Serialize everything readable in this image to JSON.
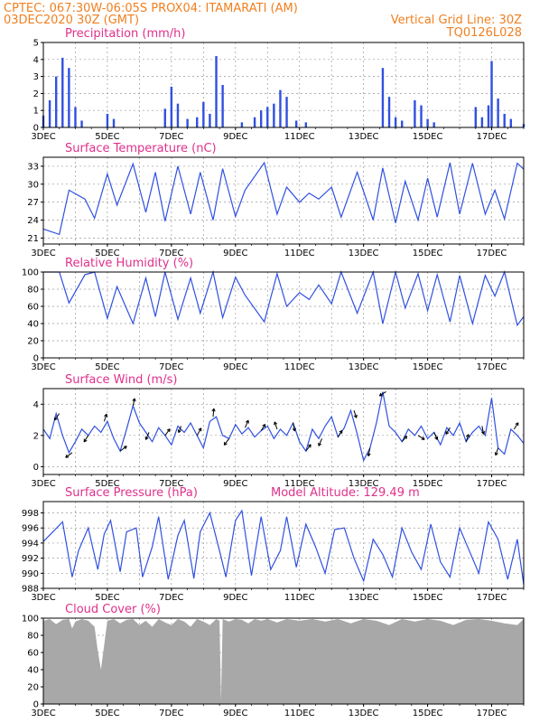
{
  "header": {
    "line1_left": "CPTEC:   067:30W-06:05S   PROX04: ITAMARATI (AM)",
    "line2_left": "03DEC2020 30Z (GMT)",
    "line2_right": "Vertical Grid Line: 30Z",
    "line3_right": "TQ0126L028"
  },
  "colors": {
    "header_text": "#f08020",
    "panel_title": "#e0308c",
    "series_line": "#3050e0",
    "precip_bar": "#3050e0",
    "cloud_fill": "#a8a8a8",
    "wind_arrow": "#000000"
  },
  "chart_data": [
    {
      "type": "bar",
      "panel": "precipitation",
      "title": "Precipitation (mm/h)",
      "ylim": [
        0,
        5
      ],
      "yticks": [
        "0",
        "1",
        "2",
        "3",
        "4",
        "5"
      ],
      "xticks": [
        "3DEC",
        "5DEC",
        "7DEC",
        "9DEC",
        "11DEC",
        "13DEC",
        "15DEC",
        "17DEC"
      ],
      "x_days": [
        3.0,
        3.2,
        3.4,
        3.6,
        3.8,
        4.0,
        4.2,
        5.0,
        5.2,
        6.8,
        7.0,
        7.2,
        7.5,
        7.8,
        8.0,
        8.2,
        8.4,
        8.6,
        9.2,
        9.6,
        9.8,
        10.0,
        10.2,
        10.4,
        10.6,
        10.9,
        11.2,
        13.6,
        13.8,
        14.0,
        14.2,
        14.6,
        14.8,
        15.0,
        15.2,
        16.5,
        16.7,
        16.9,
        17.0,
        17.2,
        17.4,
        17.6,
        18.0
      ],
      "values": [
        0.7,
        1.6,
        3.0,
        4.1,
        3.5,
        1.2,
        0.4,
        0.8,
        0.5,
        1.1,
        2.4,
        1.4,
        0.5,
        0.6,
        1.5,
        0.8,
        4.2,
        2.5,
        0.3,
        0.6,
        1.0,
        1.2,
        1.4,
        2.2,
        1.8,
        0.4,
        0.3,
        3.5,
        1.8,
        0.6,
        0.4,
        1.6,
        1.3,
        0.5,
        0.3,
        1.2,
        0.6,
        1.3,
        3.9,
        1.7,
        0.8,
        0.5,
        0.2
      ]
    },
    {
      "type": "line",
      "panel": "surface_temperature",
      "title": "Surface Temperature (nC)",
      "ylim": [
        20,
        34.5
      ],
      "yticks": [
        "21",
        "24",
        "27",
        "30",
        "33"
      ],
      "xticks": [
        "3DEC",
        "5DEC",
        "7DEC",
        "9DEC",
        "11DEC",
        "13DEC",
        "15DEC",
        "17DEC"
      ],
      "series": [
        {
          "x": [
            3.0,
            3.5,
            3.8,
            4.3,
            4.6,
            5.0,
            5.3,
            5.8,
            6.2,
            6.5,
            6.8,
            7.2,
            7.6,
            7.9,
            8.3,
            8.6,
            9.0,
            9.3,
            9.9,
            10.3,
            10.6,
            11.0,
            11.3,
            11.6,
            12.0,
            12.3,
            12.8,
            13.3,
            13.6,
            14.0,
            14.3,
            14.7,
            15.0,
            15.3,
            15.7,
            16.0,
            16.4,
            16.8,
            17.1,
            17.4,
            17.8,
            18.0
          ],
          "y": [
            22.5,
            21.6,
            29.0,
            27.5,
            24.3,
            31.7,
            26.5,
            33.4,
            25.3,
            32.0,
            23.8,
            33.0,
            25.0,
            32.0,
            24.0,
            32.6,
            24.6,
            29.0,
            33.6,
            25.0,
            29.5,
            27.0,
            28.5,
            27.5,
            29.5,
            24.5,
            32.0,
            24.0,
            32.7,
            23.5,
            30.5,
            24.0,
            31.0,
            24.5,
            33.6,
            25.0,
            33.5,
            25.0,
            29.0,
            24.2,
            33.5,
            32.5
          ]
        }
      ]
    },
    {
      "type": "line",
      "panel": "relative_humidity",
      "title": "Relative Humidity (%)",
      "ylim": [
        0,
        100
      ],
      "yticks": [
        "0",
        "20",
        "40",
        "60",
        "80",
        "100"
      ],
      "xticks": [
        "3DEC",
        "5DEC",
        "7DEC",
        "9DEC",
        "11DEC",
        "13DEC",
        "15DEC",
        "17DEC"
      ],
      "series": [
        {
          "x": [
            3.0,
            3.5,
            3.8,
            4.3,
            4.6,
            5.0,
            5.3,
            5.8,
            6.2,
            6.5,
            6.8,
            7.2,
            7.6,
            7.9,
            8.3,
            8.6,
            9.0,
            9.3,
            9.9,
            10.3,
            10.6,
            11.0,
            11.3,
            11.6,
            12.0,
            12.3,
            12.8,
            13.3,
            13.6,
            14.0,
            14.3,
            14.7,
            15.0,
            15.3,
            15.7,
            16.0,
            16.4,
            16.8,
            17.1,
            17.4,
            17.8,
            18.0
          ],
          "y": [
            100,
            100,
            64,
            97,
            100,
            46,
            83,
            40,
            93,
            48,
            100,
            45,
            93,
            52,
            100,
            47,
            94,
            73,
            42,
            98,
            60,
            76,
            68,
            85,
            63,
            100,
            52,
            100,
            40,
            100,
            58,
            98,
            55,
            97,
            42,
            96,
            40,
            96,
            72,
            100,
            38,
            48
          ]
        }
      ]
    },
    {
      "type": "line",
      "panel": "surface_wind",
      "title": "Surface Wind (m/s)",
      "ylim": [
        -0.5,
        5
      ],
      "yticks": [
        "0",
        "2",
        "4"
      ],
      "xticks": [
        "3DEC",
        "5DEC",
        "7DEC",
        "9DEC",
        "11DEC",
        "13DEC",
        "15DEC",
        "17DEC"
      ],
      "series": [
        {
          "x": [
            3.0,
            3.2,
            3.4,
            3.6,
            3.8,
            4.0,
            4.2,
            4.4,
            4.6,
            4.8,
            5.0,
            5.2,
            5.4,
            5.6,
            5.8,
            6.0,
            6.2,
            6.4,
            6.6,
            6.8,
            7.0,
            7.2,
            7.4,
            7.6,
            7.8,
            8.0,
            8.2,
            8.4,
            8.6,
            8.8,
            9.0,
            9.2,
            9.4,
            9.6,
            9.8,
            10.0,
            10.2,
            10.4,
            10.6,
            10.8,
            11.0,
            11.2,
            11.4,
            11.6,
            11.8,
            12.0,
            12.2,
            12.4,
            12.6,
            12.8,
            13.0,
            13.2,
            13.4,
            13.6,
            13.8,
            14.0,
            14.2,
            14.4,
            14.6,
            14.8,
            15.0,
            15.2,
            15.4,
            15.6,
            15.8,
            16.0,
            16.2,
            16.4,
            16.6,
            16.8,
            17.0,
            17.2,
            17.4,
            17.6,
            17.8,
            18.0
          ],
          "y": [
            2.4,
            1.8,
            3.4,
            2.0,
            0.9,
            1.6,
            2.4,
            2.0,
            2.6,
            2.2,
            2.9,
            1.8,
            1.0,
            2.4,
            3.9,
            2.8,
            2.2,
            1.6,
            2.5,
            2.0,
            1.4,
            2.6,
            2.2,
            2.8,
            2.0,
            1.2,
            2.9,
            3.2,
            2.0,
            1.8,
            2.7,
            2.1,
            2.5,
            1.9,
            2.3,
            2.6,
            1.8,
            2.4,
            2.0,
            2.8,
            1.6,
            1.0,
            2.4,
            1.8,
            2.6,
            3.2,
            1.9,
            2.5,
            3.6,
            2.1,
            0.4,
            1.2,
            2.8,
            4.8,
            2.6,
            2.2,
            1.6,
            2.4,
            2.0,
            2.6,
            1.8,
            2.2,
            1.4,
            2.5,
            2.0,
            2.8,
            1.6,
            2.2,
            2.6,
            2.0,
            4.4,
            1.2,
            0.8,
            2.4,
            2.0,
            1.5
          ]
        }
      ],
      "arrows": {
        "x": [
          3.5,
          3.9,
          4.4,
          4.9,
          5.4,
          5.8,
          6.3,
          6.8,
          7.3,
          7.8,
          8.3,
          8.8,
          9.3,
          9.8,
          10.3,
          10.8,
          11.2,
          11.7,
          12.2,
          12.7,
          13.2,
          13.7,
          14.2,
          14.7,
          15.2,
          15.7,
          16.2,
          16.7,
          17.2,
          17.7
        ],
        "u": [
          -0.6,
          -0.8,
          -0.5,
          0.3,
          0.8,
          0.2,
          -0.4,
          0.6,
          -0.3,
          0.5,
          0.1,
          -0.6,
          0.4,
          0.5,
          -0.3,
          0.2,
          0.6,
          -0.4,
          0.5,
          0.3,
          -0.2,
          -0.8,
          0.6,
          0.8,
          0.4,
          -0.5,
          0.3,
          0.2,
          -0.3,
          0.5
        ],
        "v": [
          -0.8,
          -0.6,
          -0.8,
          0.9,
          0.6,
          0.9,
          -0.9,
          0.8,
          -0.8,
          0.9,
          1.0,
          -0.8,
          0.9,
          0.8,
          0.9,
          -1.0,
          0.8,
          -0.9,
          0.8,
          -0.9,
          -1.0,
          -0.5,
          0.7,
          -0.5,
          -0.9,
          -0.8,
          0.9,
          -1.0,
          -0.9,
          0.8
        ]
      }
    },
    {
      "type": "line",
      "panel": "surface_pressure",
      "title": "Surface Pressure (hPa)",
      "annotation": "Model Altitude: 129.49  m",
      "ylim": [
        988,
        999.5
      ],
      "yticks": [
        "988",
        "990",
        "992",
        "994",
        "996",
        "998"
      ],
      "xticks": [
        "3DEC",
        "5DEC",
        "7DEC",
        "9DEC",
        "11DEC",
        "13DEC",
        "15DEC",
        "17DEC"
      ],
      "series": [
        {
          "x": [
            3.0,
            3.3,
            3.6,
            3.9,
            4.1,
            4.4,
            4.7,
            4.9,
            5.1,
            5.4,
            5.6,
            5.9,
            6.1,
            6.4,
            6.6,
            6.9,
            7.2,
            7.4,
            7.7,
            7.9,
            8.2,
            8.5,
            8.7,
            9.0,
            9.2,
            9.5,
            9.8,
            10.1,
            10.4,
            10.6,
            10.9,
            11.2,
            11.5,
            11.8,
            12.1,
            12.4,
            12.7,
            13.0,
            13.3,
            13.6,
            13.9,
            14.2,
            14.5,
            14.8,
            15.1,
            15.4,
            15.7,
            16.0,
            16.3,
            16.6,
            16.9,
            17.2,
            17.5,
            17.8,
            18.0
          ],
          "y": [
            994.2,
            995.5,
            996.8,
            989.5,
            993.0,
            996.0,
            990.5,
            995.2,
            997.0,
            990.2,
            995.5,
            996.0,
            989.5,
            993.5,
            997.5,
            989.2,
            995.0,
            997.0,
            989.3,
            995.5,
            998.0,
            993.0,
            989.5,
            997.0,
            998.3,
            989.7,
            997.5,
            990.5,
            993.0,
            997.5,
            990.8,
            996.5,
            993.5,
            990.0,
            995.8,
            996.0,
            992.0,
            989.0,
            994.5,
            992.5,
            989.5,
            996.0,
            992.8,
            990.5,
            996.5,
            991.5,
            989.5,
            996.0,
            993.0,
            990.0,
            996.8,
            994.5,
            989.2,
            994.5,
            988.5
          ]
        }
      ]
    },
    {
      "type": "area",
      "panel": "cloud_cover",
      "title": "Cloud Cover (%)",
      "ylim": [
        0,
        100
      ],
      "yticks": [
        "0",
        "20",
        "40",
        "60",
        "80",
        "100"
      ],
      "xticks": [
        "3DEC",
        "5DEC",
        "7DEC",
        "9DEC",
        "11DEC",
        "13DEC",
        "15DEC",
        "17DEC"
      ],
      "series": [
        {
          "x": [
            3.0,
            3.2,
            3.4,
            3.6,
            3.8,
            3.9,
            4.0,
            4.2,
            4.4,
            4.6,
            4.7,
            4.8,
            5.0,
            5.2,
            5.4,
            5.6,
            5.8,
            6.0,
            6.2,
            6.4,
            6.6,
            6.8,
            7.0,
            7.2,
            7.4,
            7.6,
            7.8,
            8.0,
            8.2,
            8.4,
            8.5,
            8.55,
            8.6,
            8.8,
            9.0,
            9.2,
            9.4,
            9.6,
            9.8,
            10.0,
            10.3,
            10.6,
            11.0,
            11.4,
            11.8,
            12.2,
            12.6,
            13.0,
            13.4,
            13.8,
            14.2,
            14.6,
            15.0,
            15.4,
            15.8,
            16.2,
            16.6,
            17.0,
            17.4,
            17.8,
            18.0
          ],
          "y": [
            97,
            99,
            93,
            98,
            99,
            88,
            96,
            99,
            97,
            90,
            62,
            40,
            97,
            99,
            94,
            98,
            99,
            92,
            97,
            90,
            99,
            95,
            92,
            99,
            96,
            90,
            99,
            96,
            92,
            99,
            97,
            4,
            99,
            96,
            99,
            98,
            94,
            99,
            97,
            99,
            95,
            99,
            97,
            99,
            96,
            99,
            94,
            99,
            97,
            92,
            99,
            96,
            99,
            97,
            92,
            98,
            99,
            97,
            94,
            92,
            99
          ]
        }
      ]
    }
  ]
}
